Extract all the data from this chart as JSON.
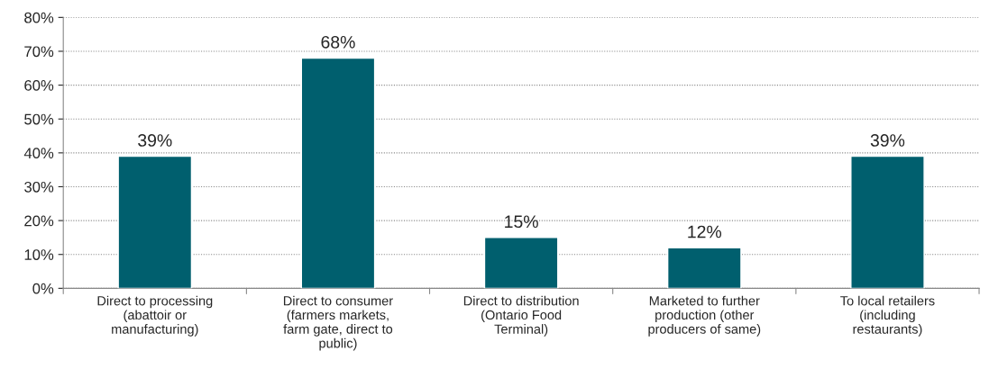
{
  "chart_data": {
    "type": "bar",
    "categories": [
      "Direct to processing\n(abattoir or\nmanufacturing)",
      "Direct to consumer\n(farmers markets,\nfarm gate, direct to\npublic)",
      "Direct to distribution\n(Ontario Food\nTerminal)",
      "Marketed to further\nproduction (other\nproducers of same)",
      "To local retailers\n(including\nrestaurants)"
    ],
    "values": [
      39,
      68,
      15,
      12,
      39
    ],
    "value_labels": [
      "39%",
      "68%",
      "15%",
      "12%",
      "39%"
    ],
    "color": "#005f6e",
    "ylim": [
      0,
      80
    ],
    "yticks": [
      {
        "value": 0,
        "label": "0%"
      },
      {
        "value": 10,
        "label": "10%"
      },
      {
        "value": 20,
        "label": "20%"
      },
      {
        "value": 30,
        "label": "30%"
      },
      {
        "value": 40,
        "label": "40%"
      },
      {
        "value": 50,
        "label": "50%"
      },
      {
        "value": 60,
        "label": "60%"
      },
      {
        "value": 70,
        "label": "70%"
      },
      {
        "value": 80,
        "label": "80%"
      }
    ],
    "grid": "y"
  }
}
